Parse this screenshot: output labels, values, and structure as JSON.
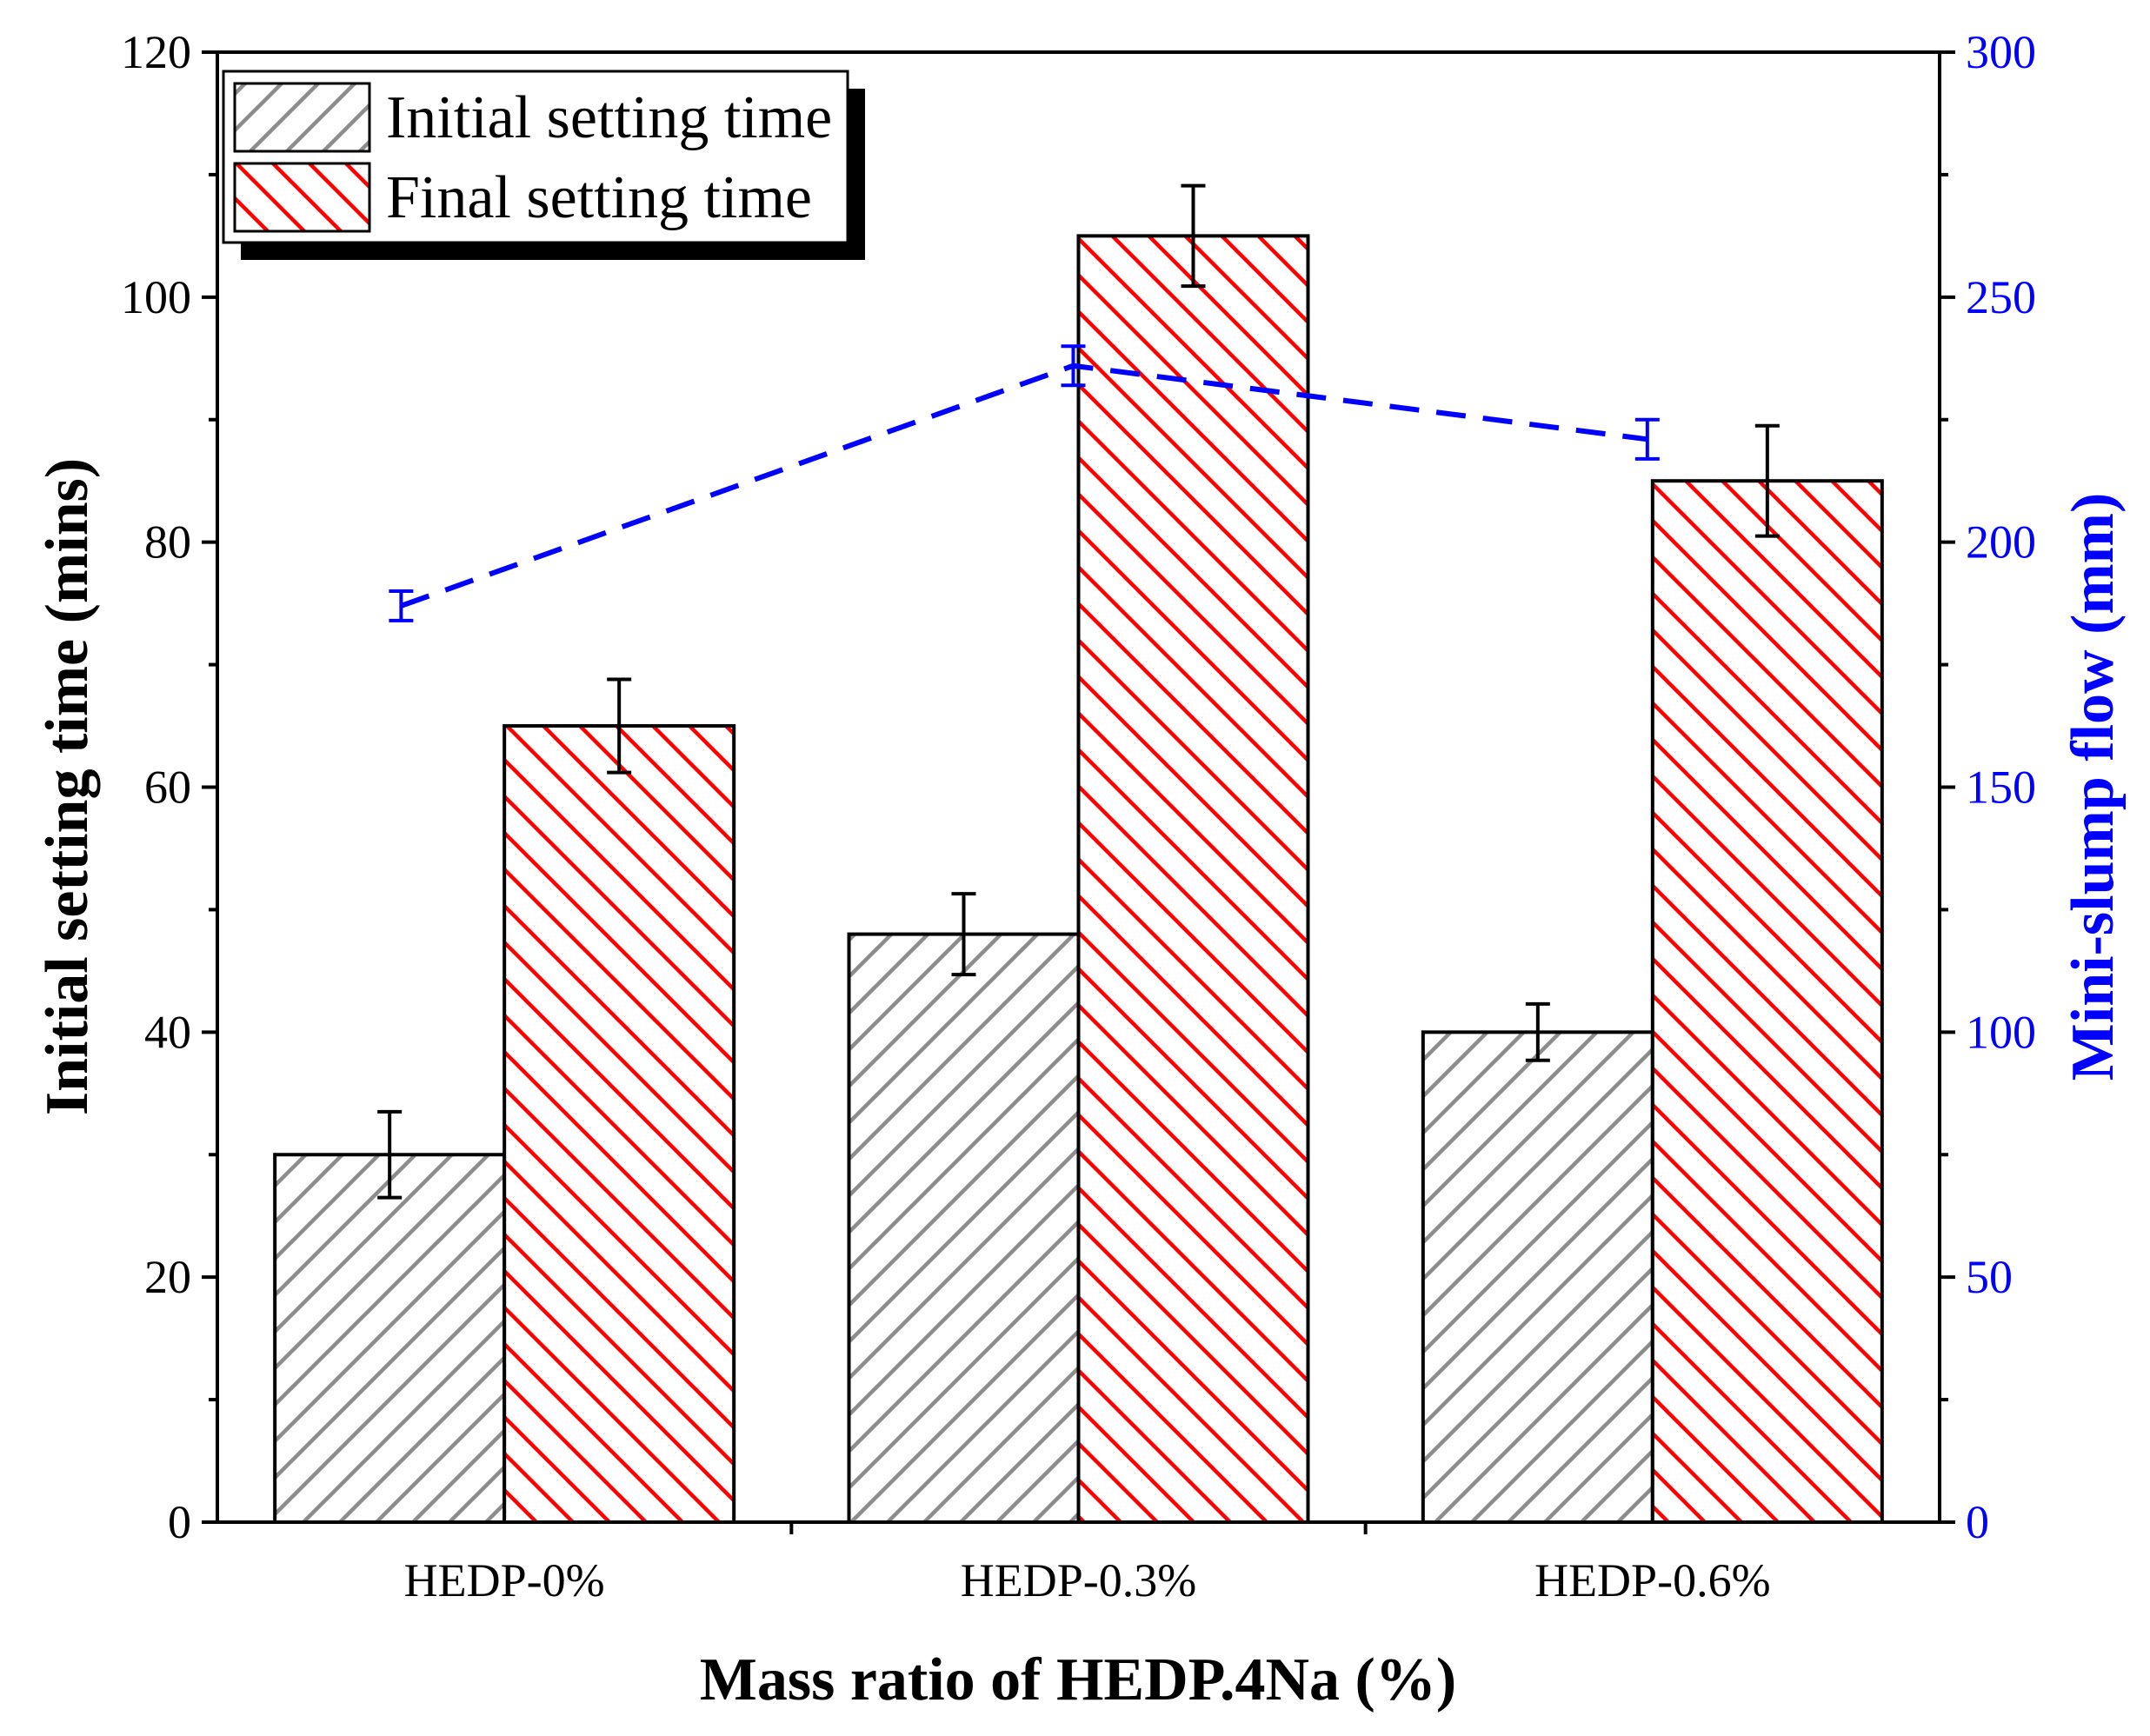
{
  "chart_data": {
    "type": "bar",
    "xlabel": "Mass ratio of HEDP.4Na (%)",
    "ylabel": "Initial setting time (mins)",
    "y2label": "Mini-slump flow (mm)",
    "categories": [
      "HEDP-0%",
      "HEDP-0.3%",
      "HEDP-0.6%"
    ],
    "ylim": [
      0,
      120
    ],
    "yticks": [
      "0",
      "20",
      "40",
      "60",
      "80",
      "100",
      "120"
    ],
    "y2lim": [
      0,
      300
    ],
    "y2ticks": [
      "0",
      "50",
      "100",
      "150",
      "200",
      "250",
      "300"
    ],
    "legend_position": "top-left",
    "series": [
      {
        "name": "Initial setting time",
        "axis": "left",
        "kind": "bar",
        "values": [
          30,
          48,
          40
        ],
        "errors": [
          3.5,
          3.3,
          2.3
        ],
        "color": "#808080",
        "hatch": "forward-diagonal"
      },
      {
        "name": "Final setting time",
        "axis": "left",
        "kind": "bar",
        "values": [
          65,
          105,
          85
        ],
        "errors": [
          3.8,
          4.1,
          4.5
        ],
        "color": "#ff0000",
        "hatch": "back-diagonal"
      },
      {
        "axis": "right",
        "kind": "line",
        "style": "dashed",
        "values": [
          187,
          236,
          221
        ],
        "errors": [
          3,
          4,
          4
        ],
        "color": "#0000ff"
      }
    ]
  }
}
